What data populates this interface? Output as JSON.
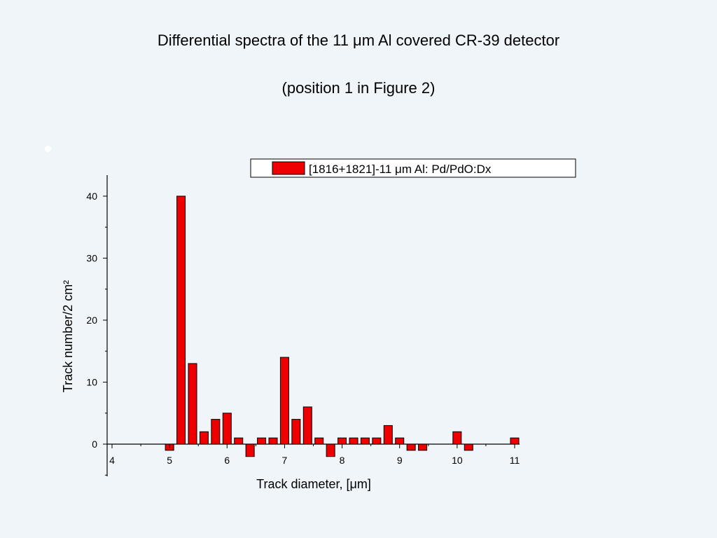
{
  "slide": {
    "title": "Differential spectra of the 11 μm Al covered CR-39 detector",
    "subtitle": "(position 1 in Figure 2)"
  },
  "chart_data": {
    "type": "bar",
    "title": "",
    "xlabel": "Track diameter, [μm]",
    "ylabel": "Track number/2 cm²",
    "xlim": [
      3.95,
      11.1
    ],
    "ylim": [
      -5,
      43
    ],
    "xticks": [
      "4",
      "5",
      "6",
      "7",
      "8",
      "9",
      "10",
      "11"
    ],
    "yticks": [
      "0",
      "10",
      "20",
      "30",
      "40"
    ],
    "legend": {
      "position": "top-right",
      "label": "[1816+1821]-11 μm Al: Pd/PdO:Dx"
    },
    "bar_color": "#ee0000",
    "grid": false,
    "series": [
      {
        "name": "[1816+1821]-11 μm Al: Pd/PdO:Dx",
        "x": [
          5.0,
          5.2,
          5.4,
          5.6,
          5.8,
          6.0,
          6.2,
          6.4,
          6.6,
          6.8,
          7.0,
          7.2,
          7.4,
          7.6,
          7.8,
          8.0,
          8.2,
          8.4,
          8.6,
          8.8,
          9.0,
          9.2,
          9.4,
          10.0,
          10.2,
          11.0
        ],
        "values": [
          -1,
          40,
          13,
          2,
          4,
          5,
          1,
          -2,
          1,
          1,
          14,
          4,
          6,
          1,
          -2,
          1,
          1,
          1,
          1,
          3,
          1,
          -1,
          -1,
          2,
          -1,
          1
        ]
      }
    ]
  }
}
